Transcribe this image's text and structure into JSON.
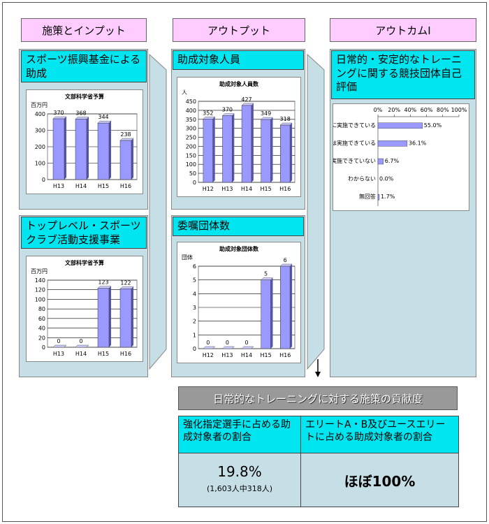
{
  "columns": [
    "施策とインプット",
    "アウトプット",
    "アウトカムⅠ"
  ],
  "panels": [
    {
      "title": "スポーツ振興基金による助成",
      "chart": {
        "type": "bar",
        "title": "文部科学省予算",
        "y_label": "百万円",
        "categories": [
          "H13",
          "H14",
          "H15",
          "H16"
        ],
        "values": [
          370,
          368,
          344,
          238
        ],
        "ylim": [
          0,
          400
        ],
        "yticks": [
          0,
          100,
          200,
          300,
          400
        ],
        "color": "#9999ff",
        "grid": true
      }
    },
    {
      "title": "トップレベル・スポーツクラブ活動支援事業",
      "chart": {
        "type": "bar",
        "title": "文部科学省予算",
        "y_label": "百万円",
        "categories": [
          "H13",
          "H14",
          "H15",
          "H16"
        ],
        "values": [
          0,
          0,
          123,
          122
        ],
        "ylim": [
          0,
          140
        ],
        "yticks": [
          0,
          20,
          40,
          60,
          80,
          100,
          120,
          140
        ],
        "color": "#9999ff",
        "grid": true
      }
    },
    {
      "title": "助成対象人員",
      "chart": {
        "type": "bar",
        "title": "助成対象人員数",
        "y_label": "人",
        "categories": [
          "H12",
          "H13",
          "H14",
          "H15",
          "H16"
        ],
        "values": [
          352,
          370,
          427,
          349,
          318
        ],
        "ylim": [
          0,
          450
        ],
        "yticks": [
          0,
          50,
          100,
          150,
          200,
          250,
          300,
          350,
          400,
          450
        ],
        "color": "#9999ff",
        "grid": true
      }
    },
    {
      "title": "委嘱団体数",
      "chart": {
        "type": "bar",
        "title": "助成対象団体数",
        "y_label": "団体",
        "categories": [
          "H12",
          "H13",
          "H14",
          "H15",
          "H16"
        ],
        "values": [
          0,
          0,
          0,
          5,
          6
        ],
        "ylim": [
          0,
          6
        ],
        "yticks": [
          0,
          1,
          2,
          3,
          4,
          5,
          6
        ],
        "color": "#9999ff",
        "grid": true
      }
    }
  ],
  "outcome": {
    "title": "日常的・安定的なトレーニングに関する競技団体自己評価",
    "chart": {
      "type": "hbar",
      "categories": [
        "日常的に実施できている",
        "一部では実施できている",
        "あまり実施できていない",
        "わからない",
        "無回答"
      ],
      "values": [
        55.0,
        36.1,
        6.7,
        0.0,
        1.7
      ],
      "value_labels": [
        "55.0%",
        "36.1%",
        "6.7%",
        "0.0%",
        "1.7%"
      ],
      "xlim": [
        0,
        100
      ],
      "xticks": [
        {
          "value": 0,
          "label": "0%"
        },
        {
          "value": 20,
          "label": "20%"
        },
        {
          "value": 40,
          "label": "40%"
        },
        {
          "value": 60,
          "label": "60%"
        },
        {
          "value": 80,
          "label": "80%"
        },
        {
          "value": 100,
          "label": "100%"
        }
      ],
      "color": "#9999ff"
    }
  },
  "contribution": {
    "title": "日常的なトレーニングに対する施策の貢献度",
    "table": {
      "headers": [
        "強化指定選手に占める助成対象者の割合",
        "エリートA・B及びユースエリートに占める助成対象者の割合"
      ],
      "cells": [
        {
          "main": "19.8%",
          "note": "(1,603人中318人)"
        },
        {
          "main": "ほぼ100%"
        }
      ]
    }
  }
}
